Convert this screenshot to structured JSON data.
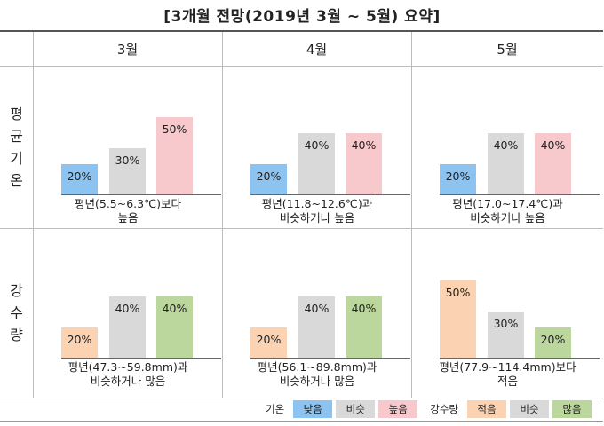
{
  "title": "[3개월 전망(2019년 3월 ~ 5월) 요약]",
  "months": [
    "3월",
    "4월",
    "5월"
  ],
  "rows": [
    {
      "label": "평균\n기온",
      "label_chars": [
        "평",
        "균",
        "기",
        "온"
      ],
      "cells": [
        {
          "values": [
            20,
            30,
            50
          ],
          "value_labels": [
            "20%",
            "30%",
            "50%"
          ],
          "desc_line1": "평년(5.5~6.3℃)보다",
          "desc_line2": "높음"
        },
        {
          "values": [
            20,
            40,
            40
          ],
          "value_labels": [
            "20%",
            "40%",
            "40%"
          ],
          "desc_line1": "평년(11.8~12.6℃)과",
          "desc_line2": "비슷하거나 높음"
        },
        {
          "values": [
            20,
            40,
            40
          ],
          "value_labels": [
            "20%",
            "40%",
            "40%"
          ],
          "desc_line1": "평년(17.0~17.4℃)과",
          "desc_line2": "비슷하거나 높음"
        }
      ]
    },
    {
      "label": "강수\n량",
      "label_chars": [
        "강",
        "수",
        "량"
      ],
      "cells": [
        {
          "values": [
            20,
            40,
            40
          ],
          "value_labels": [
            "20%",
            "40%",
            "40%"
          ],
          "desc_line1": "평년(47.3~59.8mm)과",
          "desc_line2": "비슷하거나 많음"
        },
        {
          "values": [
            20,
            40,
            40
          ],
          "value_labels": [
            "20%",
            "40%",
            "40%"
          ],
          "desc_line1": "평년(56.1~89.8mm)과",
          "desc_line2": "비슷하거나 많음"
        },
        {
          "values": [
            50,
            30,
            20
          ],
          "value_labels": [
            "50%",
            "30%",
            "20%"
          ],
          "desc_line1": "평년(77.9~114.4mm)보다",
          "desc_line2": "적음"
        }
      ]
    }
  ],
  "legend": {
    "temp_label": "기온",
    "temp_items": [
      "낮음",
      "비슷",
      "높음"
    ],
    "precip_label": "강수량",
    "precip_items": [
      "적음",
      "비슷",
      "많음"
    ]
  },
  "colors": {
    "temp_low": "#8cc3f0",
    "similar": "#d9d9d9",
    "temp_high": "#f8c9cc",
    "precip_low": "#fcd3b2",
    "precip_high": "#bcd79d"
  }
}
